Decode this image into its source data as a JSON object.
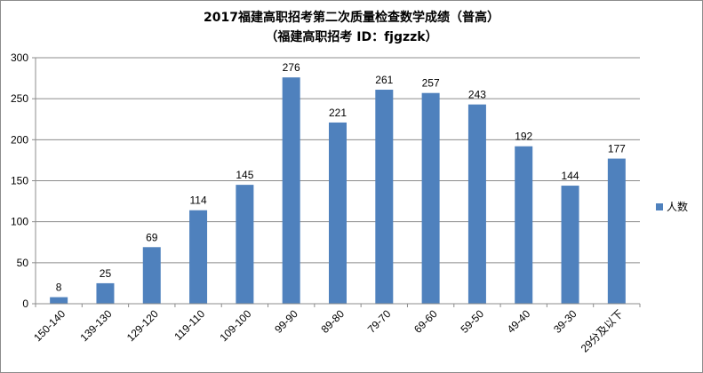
{
  "chart_data": {
    "type": "bar",
    "title": "2017福建高职招考第二次质量检查数学成绩（普高）",
    "subtitle": "（福建高职招考 ID：fjgzzk）",
    "categories": [
      "150-140",
      "139-130",
      "129-120",
      "119-110",
      "109-100",
      "99-90",
      "89-80",
      "79-70",
      "69-60",
      "59-50",
      "49-40",
      "39-30",
      "29分及以下"
    ],
    "series": [
      {
        "name": "人数",
        "color": "#4f81bd",
        "values": [
          8,
          25,
          69,
          114,
          145,
          276,
          221,
          261,
          257,
          243,
          192,
          144,
          177
        ]
      }
    ],
    "ylim": [
      0,
      300
    ],
    "yticks": [
      "0",
      "50",
      "100",
      "150",
      "200",
      "250",
      "300"
    ],
    "grid": true,
    "legend_position": "right"
  }
}
